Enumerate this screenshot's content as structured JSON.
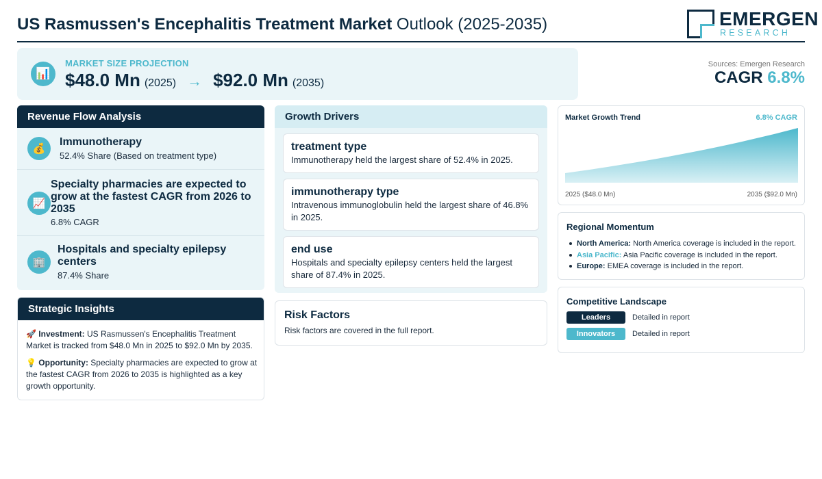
{
  "header": {
    "title_bold": "US Rasmussen's Encephalitis Treatment Market",
    "title_rest": "Outlook (2025-2035)",
    "logo_main": "EMERGEN",
    "logo_sub": "RESEARCH"
  },
  "projection": {
    "icon": "bar-chart-icon",
    "label": "MARKET SIZE PROJECTION",
    "start_value": "$48.0 Mn",
    "start_year": "(2025)",
    "arrow": "→",
    "end_value": "$92.0 Mn",
    "end_year": "(2035)"
  },
  "summary": {
    "sources": "Sources: Emergen Research",
    "cagr_label": "CAGR",
    "cagr_value": "6.8%"
  },
  "revenue_flow": {
    "heading": "Revenue Flow Analysis",
    "items": [
      {
        "icon": "money-bag-icon",
        "title": "Immunotherapy",
        "subtitle": "52.4% Share (Based on treatment type)"
      },
      {
        "icon": "trend-up-chart-icon",
        "title": "Specialty pharmacies are expected to grow at the fastest CAGR from 2026 to 2035",
        "subtitle": "6.8% CAGR"
      },
      {
        "icon": "hospital-building-icon",
        "title": "Hospitals and specialty epilepsy centers",
        "subtitle": "87.4% Share"
      }
    ]
  },
  "strategic_insights": {
    "heading": "Strategic Insights",
    "items": [
      {
        "icon": "rocket-icon",
        "emoji": "🚀",
        "label": "Investment:",
        "text": "US Rasmussen's Encephalitis Treatment Market is tracked from $48.0 Mn in 2025 to $92.0 Mn by 2035."
      },
      {
        "icon": "lightbulb-icon",
        "emoji": "💡",
        "label": "Opportunity:",
        "text": "Specialty pharmacies are expected to grow at the fastest CAGR from 2026 to 2035 is highlighted as a key growth opportunity."
      }
    ]
  },
  "growth_drivers": {
    "heading": "Growth Drivers",
    "items": [
      {
        "title": "treatment type",
        "description": "Immunotherapy held the largest share of 52.4% in 2025."
      },
      {
        "title": "immunotherapy type",
        "description": "Intravenous immunoglobulin held the largest share of 46.8% in 2025."
      },
      {
        "title": "end use",
        "description": "Hospitals and specialty epilepsy centers held the largest share of 87.4% in 2025."
      }
    ]
  },
  "risk_factors": {
    "heading": "Risk Factors",
    "description": "Risk factors are covered in the full report."
  },
  "market_trend": {
    "title": "Market Growth Trend",
    "cagr_label": "6.8% CAGR",
    "start_label": "2025 ($48.0 Mn)",
    "end_label": "2035 ($92.0 Mn)",
    "colors": {
      "fill_top": "#4db8cc",
      "fill_bottom": "#d9f0f5"
    }
  },
  "chart_data": {
    "type": "area",
    "x": [
      2025,
      2035
    ],
    "values": [
      48.0,
      92.0
    ],
    "title": "Market Growth Trend",
    "xlabel": "",
    "ylabel": "",
    "grid": false
  },
  "regional_momentum": {
    "heading": "Regional Momentum",
    "items": [
      {
        "name": "North America:",
        "text": "North America coverage is included in the report.",
        "accent": false
      },
      {
        "name": "Asia Pacific:",
        "text": "Asia Pacific coverage is included in the report.",
        "accent": true
      },
      {
        "name": "Europe:",
        "text": "EMEA coverage is included in the report.",
        "accent": false
      }
    ]
  },
  "competitive_landscape": {
    "heading": "Competitive Landscape",
    "rows": [
      {
        "badge": "Leaders",
        "detail": "Detailed in report"
      },
      {
        "badge": "Innovators",
        "detail": "Detailed in report"
      }
    ]
  },
  "colors": {
    "navy": "#0d2a40",
    "accent": "#4db8cc",
    "panel_bg": "#eaf5f8"
  }
}
